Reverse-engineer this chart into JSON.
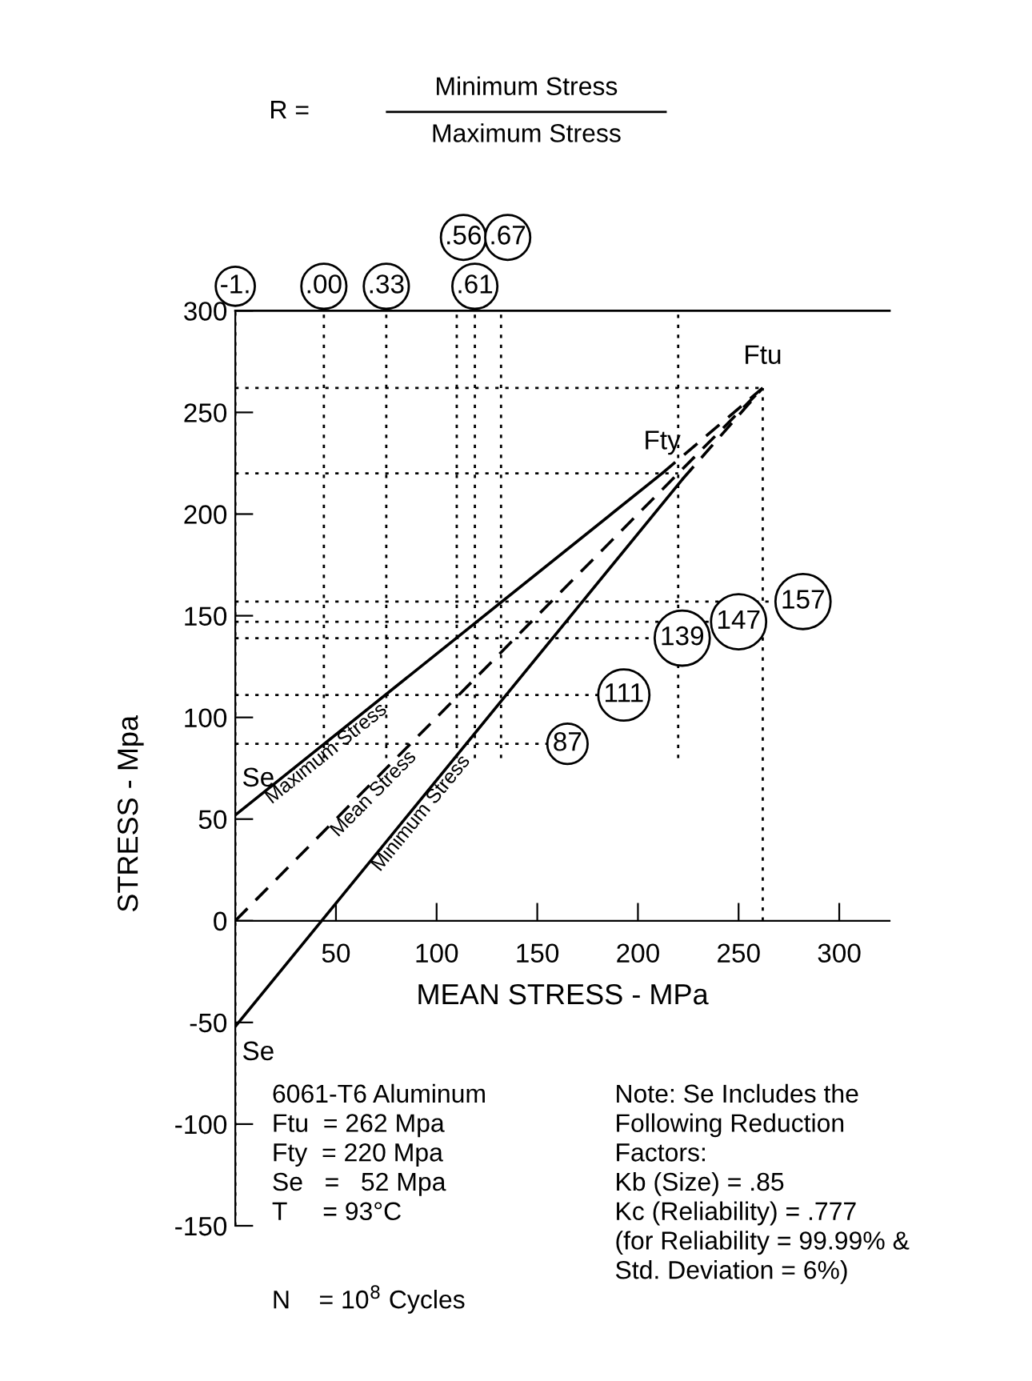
{
  "chart_data": {
    "type": "line",
    "xlabel": "MEAN STRESS - MPa",
    "ylabel": "STRESS - Mpa",
    "xlim": [
      0,
      325
    ],
    "ylim": [
      -150,
      300
    ],
    "xticks": [
      50,
      100,
      150,
      200,
      250,
      300
    ],
    "yticks": [
      -150,
      -100,
      -50,
      0,
      50,
      100,
      150,
      200,
      250,
      300
    ],
    "series": [
      {
        "name": "Maximum Stress",
        "color": "#000000",
        "line_style": "solid",
        "x": [
          0,
          212
        ],
        "values": [
          52,
          220
        ]
      },
      {
        "name": "Mean Stress",
        "color": "#000000",
        "line_style": "dashed",
        "x": [
          0,
          262
        ],
        "values": [
          0,
          262
        ]
      },
      {
        "name": "Minimum Stress",
        "color": "#000000",
        "line_style": "solid",
        "x": [
          0,
          222
        ],
        "values": [
          -52,
          217
        ]
      },
      {
        "color": "#000000",
        "line_style": "dashed",
        "x": [
          212,
          262
        ],
        "values": [
          220,
          262
        ]
      },
      {
        "color": "#000000",
        "line_style": "dashed",
        "x": [
          222,
          262
        ],
        "values": [
          217,
          262
        ]
      }
    ],
    "ref_lines": [
      {
        "axis": "y",
        "value": 262,
        "label": null,
        "line_style": "dotted"
      },
      {
        "axis": "y",
        "value": 220,
        "label": null,
        "line_style": "dotted"
      },
      {
        "axis": "y",
        "value": 87,
        "label": "87",
        "line_style": "dotted"
      },
      {
        "axis": "y",
        "value": 111,
        "label": "111",
        "line_style": "dotted"
      },
      {
        "axis": "y",
        "value": 139,
        "label": "139",
        "line_style": "dotted"
      },
      {
        "axis": "y",
        "value": 147,
        "label": "147",
        "line_style": "dotted"
      },
      {
        "axis": "y",
        "value": 157,
        "label": "157",
        "line_style": "dotted"
      },
      {
        "axis": "x",
        "value": 220,
        "label": null,
        "line_style": "dotted"
      },
      {
        "axis": "x",
        "value": 262,
        "label": null,
        "line_style": "dotted"
      },
      {
        "axis": "x",
        "value": 0,
        "label": null,
        "line_style": "dotted"
      },
      {
        "axis": "x",
        "value": 44,
        "label": null,
        "line_style": "dotted"
      },
      {
        "axis": "x",
        "value": 75,
        "label": null,
        "line_style": "dotted"
      },
      {
        "axis": "x",
        "value": 110,
        "label": null,
        "line_style": "dotted"
      },
      {
        "axis": "x",
        "value": 119,
        "label": null,
        "line_style": "dotted"
      },
      {
        "axis": "x",
        "value": 132,
        "label": null,
        "line_style": "dotted"
      }
    ],
    "annotations": [
      "R =",
      "Minimum Stress",
      "Maximum Stress",
      {
        "text": "Ftu",
        "x": 262,
        "y": 262
      },
      {
        "text": "Fty",
        "x": 212,
        "y": 220
      },
      {
        "text": "Se",
        "x": 0,
        "y": 52
      },
      {
        "text": "Se",
        "x": 0,
        "y": -52
      },
      {
        "text": "-1.",
        "x": 0,
        "y": 300
      },
      {
        "text": ".00",
        "x": 44,
        "y": 300
      },
      {
        "text": ".33",
        "x": 75,
        "y": 300
      },
      {
        "text": ".56",
        "x": 110,
        "y": 300
      },
      {
        "text": ".61",
        "x": 119,
        "y": 300
      },
      {
        "text": ".67",
        "x": 132,
        "y": 300
      },
      "6061-T6 Aluminum\nFtu  = 262 Mpa\nFty  = 220 Mpa\nSe   =   52 Mpa\nT     = 93°C",
      "N    = 10$^{8}$ Cycles",
      "Note: Se Includes the\nFollowing Reduction\nFactors:\nKb (Size) = .85\nKc (Reliability) = .777\n(for Reliability = 99.99% &\nStd. Deviation = 6%)"
    ],
    "grid": false,
    "legend": false
  }
}
